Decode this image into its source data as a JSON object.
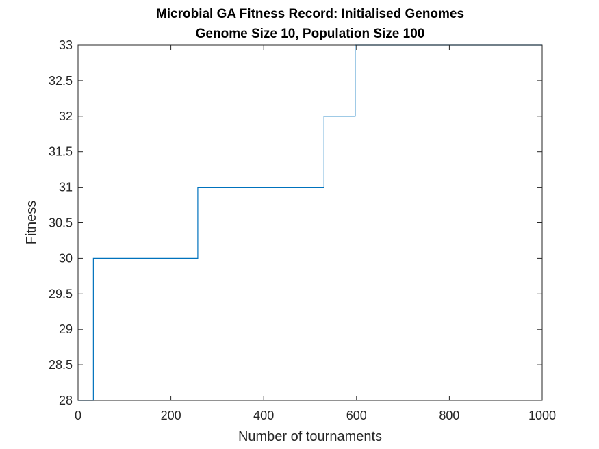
{
  "chart_data": {
    "type": "line",
    "title": "Microbial GA Fitness Record: Initialised Genomes",
    "subtitle": "Genome Size 10, Population Size 100",
    "xlabel": "Number of tournaments",
    "ylabel": "Fitness",
    "xlim": [
      0,
      1000
    ],
    "ylim": [
      28,
      33
    ],
    "xticks": [
      0,
      200,
      400,
      600,
      800,
      1000
    ],
    "yticks": [
      28,
      28.5,
      29,
      29.5,
      30,
      30.5,
      31,
      31.5,
      32,
      32.5,
      33
    ],
    "grid": false,
    "box": true,
    "line_style": "step",
    "series": [
      {
        "color": "#0072BD",
        "x": [
          0,
          33,
          33,
          258,
          258,
          530,
          530,
          597,
          597,
          1000
        ],
        "y": [
          28,
          28,
          30,
          30,
          31,
          31,
          32,
          32,
          33,
          33
        ]
      }
    ]
  }
}
